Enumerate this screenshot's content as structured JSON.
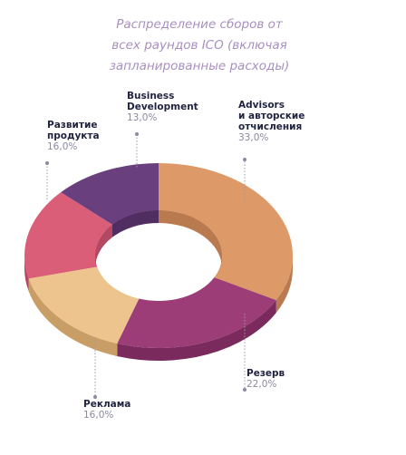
{
  "chart_data": {
    "type": "pie",
    "style": "3d-donut",
    "title_lines": [
      "Распределение сборов от",
      "всех раундов ICO (включая",
      "запланированные расходы)"
    ],
    "slices": [
      {
        "lines": [
          "Advisors",
          "и авторские",
          "отчисления"
        ],
        "value_label": "33,0%",
        "value": 33.0,
        "color": "#dd9a68",
        "side": "#b87a4e"
      },
      {
        "lines": [
          "Резерв"
        ],
        "value_label": "22,0%",
        "value": 22.0,
        "color": "#9c3d78",
        "side": "#7a2a5c"
      },
      {
        "lines": [
          "Реклама"
        ],
        "value_label": "16,0%",
        "value": 16.0,
        "color": "#edc48e",
        "side": "#c99d66"
      },
      {
        "lines": [
          "Развитие",
          "продукта"
        ],
        "value_label": "16,0%",
        "value": 16.0,
        "color": "#db5e79",
        "side": "#b44761"
      },
      {
        "lines": [
          "Business",
          "Development"
        ],
        "value_label": "13,0%",
        "value": 13.0,
        "color": "#6a3f7d",
        "side": "#512e61"
      }
    ]
  }
}
